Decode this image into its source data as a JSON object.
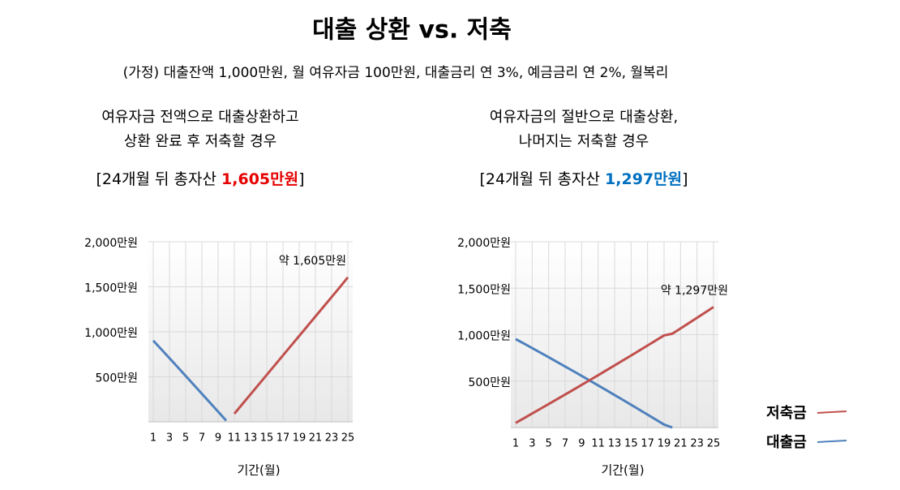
{
  "title": "대출 상환 vs. 저축",
  "subtitle": "(가정) 대출잔액 1,000만원, 월 여유자금 100만원, 대출금리 연 3%, 예금금리 연 2%, 월복리",
  "chart_data": [
    {
      "type": "line",
      "title": [
        "여유자금 전액으로 대출상환하고",
        "상환 완료 후 저축할 경우"
      ],
      "summary": {
        "prefix": "[24개월 뒤 총자산 ",
        "value": "1,605만원",
        "suffix": "]",
        "color": "#e60000"
      },
      "annotation": "약 1,605만원",
      "xlabel": "기간(월)",
      "x": [
        1,
        2,
        3,
        4,
        5,
        6,
        7,
        8,
        9,
        10,
        11,
        12,
        13,
        14,
        15,
        16,
        17,
        18,
        19,
        20,
        21,
        22,
        23,
        24,
        25
      ],
      "xlim": [
        1,
        25
      ],
      "xticks": [
        1,
        3,
        5,
        7,
        9,
        11,
        13,
        15,
        17,
        19,
        21,
        23,
        25
      ],
      "ylim": [
        0,
        2000
      ],
      "yticks": [
        {
          "value": 500,
          "label": "500만원"
        },
        {
          "value": 1000,
          "label": "1,000만원"
        },
        {
          "value": 1500,
          "label": "1,500만원"
        },
        {
          "value": 2000,
          "label": "2,000만원"
        }
      ],
      "series": [
        {
          "name": "대출금",
          "color": "#4f81bd",
          "values": [
            902,
            805,
            707,
            609,
            510,
            411,
            312,
            213,
            114,
            14,
            null,
            null,
            null,
            null,
            null,
            null,
            null,
            null,
            null,
            null,
            null,
            null,
            null,
            null,
            null
          ]
        },
        {
          "name": "저축금",
          "color": "#c0504d",
          "values": [
            null,
            null,
            null,
            null,
            null,
            null,
            null,
            null,
            null,
            null,
            90,
            198,
            306,
            414,
            522,
            630,
            738,
            846,
            954,
            1062,
            1170,
            1278,
            1386,
            1494,
            1605
          ]
        }
      ]
    },
    {
      "type": "line",
      "title": [
        "여유자금의 절반으로 대출상환,",
        "나머지는 저축할 경우"
      ],
      "summary": {
        "prefix": "[24개월 뒤 총자산 ",
        "value": "1,297만원",
        "suffix": "]",
        "color": "#0070c0"
      },
      "annotation": "약 1,297만원",
      "xlabel": "기간(월)",
      "x": [
        1,
        2,
        3,
        4,
        5,
        6,
        7,
        8,
        9,
        10,
        11,
        12,
        13,
        14,
        15,
        16,
        17,
        18,
        19,
        20,
        21,
        22,
        23,
        24,
        25
      ],
      "xlim": [
        1,
        25
      ],
      "xticks": [
        1,
        3,
        5,
        7,
        9,
        11,
        13,
        15,
        17,
        19,
        21,
        23,
        25
      ],
      "ylim": [
        0,
        2000
      ],
      "yticks": [
        {
          "value": 500,
          "label": "500만원"
        },
        {
          "value": 1000,
          "label": "1,000만원"
        },
        {
          "value": 1500,
          "label": "1,500만원"
        },
        {
          "value": 2000,
          "label": "2,000만원"
        }
      ],
      "legend": "right",
      "series": [
        {
          "name": "대출금",
          "color": "#4f81bd",
          "values": [
            952,
            904,
            855,
            806,
            757,
            707,
            657,
            607,
            556,
            505,
            454,
            402,
            350,
            298,
            245,
            192,
            139,
            86,
            32,
            0,
            null,
            null,
            null,
            null,
            null
          ]
        },
        {
          "name": "저축금",
          "color": "#c0504d",
          "values": [
            50,
            100,
            151,
            202,
            253,
            304,
            355,
            407,
            459,
            511,
            563,
            616,
            669,
            722,
            775,
            829,
            883,
            937,
            992,
            1010,
            1067,
            1124,
            1181,
            1239,
            1297
          ]
        }
      ]
    }
  ]
}
